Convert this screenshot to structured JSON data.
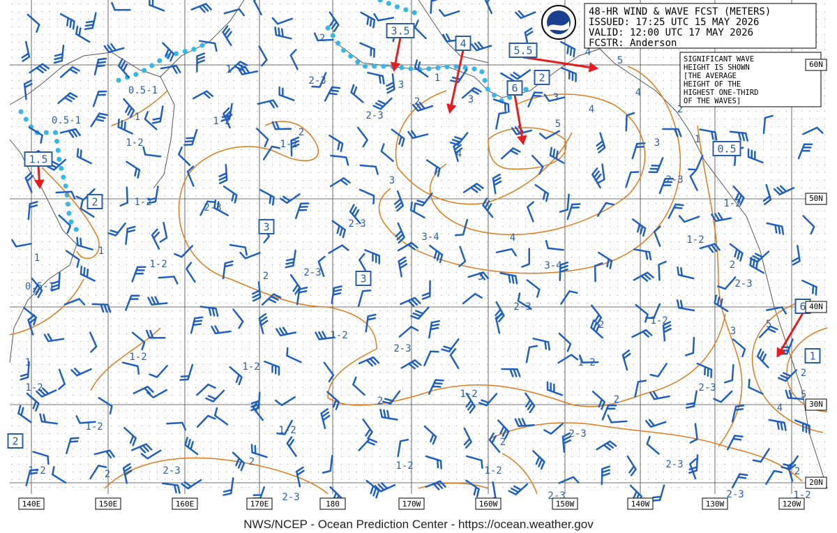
{
  "header": {
    "lines": [
      "48-HR WIND & WAVE FCST (METERS)",
      "ISSUED: 17:25 UTC 15 MAY 2026",
      "VALID:  12:00 UTC 17 MAY 2026",
      "FCSTR:  Anderson"
    ]
  },
  "note": {
    "lines": [
      "SIGNIFICANT WAVE",
      "HEIGHT IS SHOWN",
      "[THE AVERAGE",
      "HEIGHT OF THE",
      "HIGHEST ONE-THIRD",
      "OF THE WAVES]"
    ]
  },
  "longitudes": [
    "140E",
    "150E",
    "160E",
    "170E",
    "180",
    "170W",
    "160W",
    "150W",
    "140W",
    "130W",
    "120W"
  ],
  "latitudes": [
    "60N",
    "50N",
    "40N",
    "30N",
    "20N"
  ],
  "wave_labels": [
    "2",
    "0.5-1",
    "1",
    "2-3",
    "3",
    "1",
    "2",
    "3",
    "0.5-1",
    "1",
    "1-2",
    "2-3",
    "2",
    "1-2",
    "1-2",
    "5",
    "3",
    "4",
    "4",
    "2",
    "5",
    "4",
    "4",
    "3",
    "3",
    "1",
    "2-3",
    "1-2",
    "2-3",
    "2-3",
    "1-2",
    "3-4",
    "4",
    "1-2",
    "1",
    "1",
    "1-2",
    "3-4",
    "2",
    "0.5-1",
    "2",
    "2-3",
    "3",
    "2-3",
    "2-3",
    "1-2",
    "2",
    "3",
    "5",
    "1-2",
    "2-3",
    "1-2",
    "1-2",
    "1-2",
    "1",
    "1-2",
    "2",
    "2-3",
    "2",
    "1-2",
    "2",
    "5",
    "4",
    "1-2",
    "1-2",
    "2-3",
    "2",
    "2",
    "1-2",
    "2-3",
    "1-2",
    "2-3",
    "2",
    "1-2",
    "2",
    "2-3",
    "2-3",
    "2-3",
    "1-2"
  ],
  "max_labels": [
    "3.5",
    "4",
    "5.5",
    "2",
    "6",
    "0.5",
    "1.5",
    "2",
    "3",
    "3",
    "6",
    "1",
    "2"
  ],
  "footer": "NWS/NCEP - Ocean Prediction Center - https://ocean.weather.gov"
}
